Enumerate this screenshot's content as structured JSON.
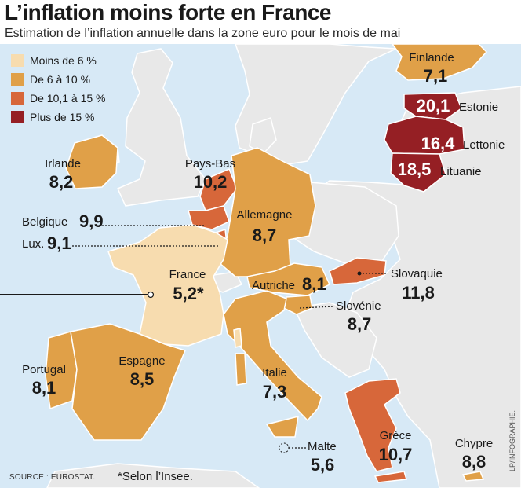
{
  "title": "L’inflation moins forte en France",
  "subtitle": "Estimation de l’inflation annuelle dans la zone euro pour le mois de mai",
  "colors": {
    "sea": "#d7e9f6",
    "land_nonzone": "#e8e8e8",
    "border": "#ffffff",
    "coast": "#b8c7d3",
    "class_lt6": "#f7dcaf",
    "class_6_10": "#e0a048",
    "class_10_15": "#d7673a",
    "class_gt15": "#951f24"
  },
  "legend": [
    {
      "label": "Moins de 6 %",
      "color": "#f7dcaf"
    },
    {
      "label": "De 6 à 10 %",
      "color": "#e0a048"
    },
    {
      "label": "De 10,1 à 15 %",
      "color": "#d7673a"
    },
    {
      "label": "Plus de 15 %",
      "color": "#951f24"
    }
  ],
  "countries": {
    "finlande": {
      "name": "Finlande",
      "value": "7,1"
    },
    "estonie": {
      "name": "Estonie",
      "value": "20,1"
    },
    "lettonie": {
      "name": "Lettonie",
      "value": "16,4"
    },
    "lituanie": {
      "name": "Lituanie",
      "value": "18,5"
    },
    "irlande": {
      "name": "Irlande",
      "value": "8,2"
    },
    "pays_bas": {
      "name": "Pays-Bas",
      "value": "10,2"
    },
    "belgique": {
      "name": "Belgique",
      "value": "9,9"
    },
    "lux": {
      "name": "Lux.",
      "value": "9,1"
    },
    "allemagne": {
      "name": "Allemagne",
      "value": "8,7"
    },
    "france": {
      "name": "France",
      "value": "5,2*"
    },
    "autriche": {
      "name": "Autriche",
      "value": "8,1"
    },
    "slovaquie": {
      "name": "Slovaquie",
      "value": "11,8"
    },
    "slovenie": {
      "name": "Slovénie",
      "value": "8,7"
    },
    "portugal": {
      "name": "Portugal",
      "value": "8,1"
    },
    "espagne": {
      "name": "Espagne",
      "value": "8,5"
    },
    "italie": {
      "name": "Italie",
      "value": "7,3"
    },
    "malte": {
      "name": "Malte",
      "value": "5,6"
    },
    "grece": {
      "name": "Grèce",
      "value": "10,7"
    },
    "chypre": {
      "name": "Chypre",
      "value": "8,8"
    }
  },
  "source": "SOURCE : EUROSTAT.",
  "footnote": "*Selon l’Insee.",
  "credit": "LP/INFOGRAPHIE."
}
